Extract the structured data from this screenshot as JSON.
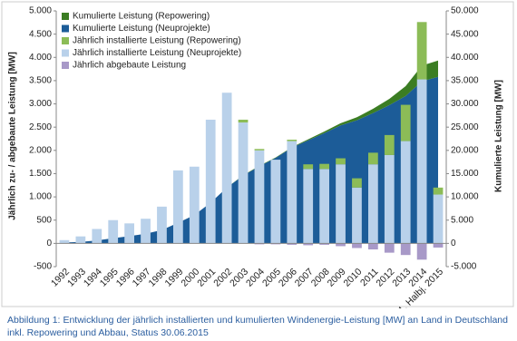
{
  "chart_data": {
    "type": "bar",
    "y_label": "Jährlich zu- / abgebaute Leistung [MW]",
    "y2_label": "Kumulierte Leistung [MW]",
    "caption": "Abbildung 1: Entwicklung der jährlich installierten und kumulierten Windenergie-Leistung [MW] an Land in Deutschland inkl. Repowering und Abbau, Status 30.06.2015",
    "categories": [
      "1992",
      "1993",
      "1994",
      "1995",
      "1996",
      "1997",
      "1998",
      "1999",
      "2000",
      "2001",
      "2002",
      "2003",
      "2004",
      "2005",
      "2006",
      "2007",
      "2008",
      "2009",
      "2010",
      "2011",
      "2012",
      "2013",
      "2014",
      "1. Halbj. 2015"
    ],
    "series": [
      {
        "name": "Kumulierte Leistung (Repowering)",
        "type": "area",
        "axis": "y2",
        "color": "#3b7d23",
        "values": [
          0,
          0,
          0,
          0,
          0,
          0,
          0,
          0,
          0,
          0,
          0,
          60,
          90,
          90,
          120,
          220,
          330,
          460,
          660,
          910,
          1340,
          2120,
          3350,
          3500
        ]
      },
      {
        "name": "Kumulierte Leistung (Neuprojekte)",
        "type": "area",
        "axis": "y2",
        "color": "#1c5c98",
        "values": [
          180,
          330,
          640,
          1130,
          1550,
          2080,
          2870,
          4440,
          6090,
          8750,
          11990,
          14590,
          16590,
          18390,
          20580,
          22160,
          23730,
          25370,
          26470,
          28040,
          29740,
          31690,
          34870,
          35830
        ]
      },
      {
        "name": "Jährlich installierte Leistung (Repowering)",
        "type": "bar",
        "color": "#8cbc57",
        "values": [
          0,
          0,
          0,
          0,
          0,
          0,
          0,
          0,
          0,
          0,
          0,
          60,
          30,
          0,
          30,
          100,
          110,
          130,
          200,
          250,
          430,
          780,
          1230,
          150
        ]
      },
      {
        "name": "Jährlich installierte Leistung (Neuprojekte)",
        "type": "bar",
        "color": "#b9d1ea",
        "values": [
          70,
          150,
          310,
          500,
          430,
          530,
          790,
          1570,
          1650,
          2660,
          3240,
          2600,
          2000,
          1800,
          2200,
          1600,
          1600,
          1700,
          1200,
          1700,
          1900,
          2200,
          3530,
          1050
        ]
      },
      {
        "name": "Jährlich abgebaute Leistung",
        "type": "bar",
        "color": "#a899c8",
        "values": [
          0,
          0,
          0,
          0,
          0,
          0,
          0,
          0,
          0,
          0,
          0,
          0,
          -20,
          -20,
          -30,
          -40,
          -30,
          -60,
          -100,
          -130,
          -200,
          -250,
          -350,
          -90
        ]
      }
    ],
    "ylim": [
      -500,
      5000
    ],
    "yticks": [
      -500,
      0,
      500,
      {
        "value": 1000,
        "label": "1.000"
      },
      {
        "value": 1500,
        "label": "1.500"
      },
      {
        "value": 2000,
        "label": "2.000"
      },
      {
        "value": 2500,
        "label": "2.500"
      },
      {
        "value": 3000,
        "label": "3.000"
      },
      {
        "value": 3500,
        "label": "3.500"
      },
      {
        "value": 4000,
        "label": "4.000"
      },
      {
        "value": 4500,
        "label": "4.500"
      },
      {
        "value": 5000,
        "label": "5.000"
      }
    ],
    "y2lim": [
      -5000,
      50000
    ],
    "y2ticks": [
      {
        "value": -5000,
        "label": "-5.000"
      },
      0,
      {
        "value": 5000,
        "label": "5.000"
      },
      {
        "value": 10000,
        "label": "10.000"
      },
      {
        "value": 15000,
        "label": "15.000"
      },
      {
        "value": 20000,
        "label": "20.000"
      },
      {
        "value": 25000,
        "label": "25.000"
      },
      {
        "value": 30000,
        "label": "30.000"
      },
      {
        "value": 35000,
        "label": "35.000"
      },
      {
        "value": 40000,
        "label": "40.000"
      },
      {
        "value": 45000,
        "label": "45.000"
      },
      {
        "value": 50000,
        "label": "50.000"
      }
    ],
    "grid": false,
    "legend": "top-left"
  }
}
